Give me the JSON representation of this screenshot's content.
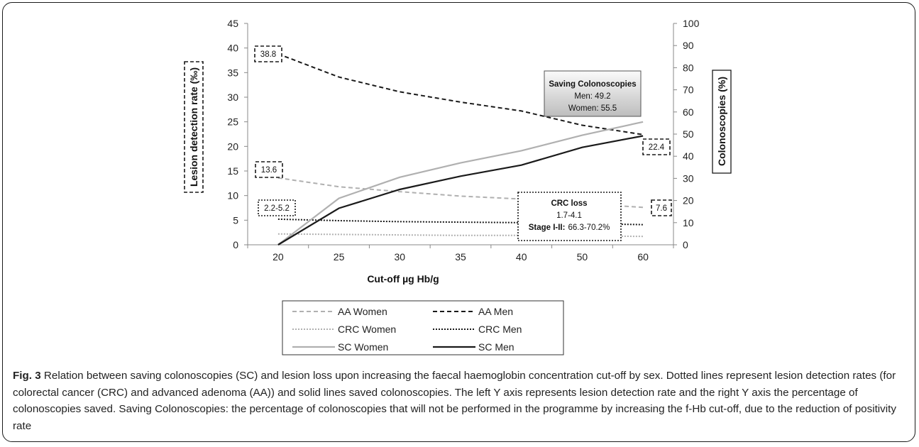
{
  "chart_data": {
    "type": "line",
    "x": [
      "20",
      "25",
      "30",
      "35",
      "40",
      "50",
      "60"
    ],
    "xlabel": "Cut-off µg Hb/g",
    "ylabel_left": "Lesion detection rate (‰)",
    "ylabel_right": "Colonoscopies (%)",
    "ylim_left": [
      0,
      45
    ],
    "ylim_right": [
      0,
      100
    ],
    "yticks_left": [
      "0",
      "5",
      "10",
      "15",
      "20",
      "25",
      "30",
      "35",
      "40",
      "45"
    ],
    "yticks_right": [
      "0",
      "10",
      "20",
      "30",
      "40",
      "50",
      "60",
      "70",
      "80",
      "90",
      "100"
    ],
    "series": [
      {
        "name": "AA Women",
        "axis": "left",
        "color": "#b0b0b0",
        "dash": "dashed",
        "values": [
          13.6,
          11.8,
          10.8,
          9.9,
          9.3,
          8.4,
          7.6
        ]
      },
      {
        "name": "AA Men",
        "axis": "left",
        "color": "#1a1a1a",
        "dash": "dashed",
        "values": [
          38.8,
          34.1,
          31.1,
          29.0,
          27.2,
          24.3,
          22.4
        ]
      },
      {
        "name": "CRC Women",
        "axis": "left",
        "color": "#b0b0b0",
        "dash": "dotted",
        "values": [
          2.2,
          2.1,
          2.0,
          1.9,
          1.9,
          1.8,
          1.7
        ]
      },
      {
        "name": "CRC Men",
        "axis": "left",
        "color": "#1a1a1a",
        "dash": "dotted",
        "values": [
          5.2,
          4.9,
          4.7,
          4.6,
          4.5,
          4.3,
          4.1
        ]
      },
      {
        "name": "SC Women",
        "axis": "right",
        "color": "#b0b0b0",
        "dash": "solid",
        "values": [
          0,
          21,
          30.5,
          37,
          42.5,
          49.5,
          55.5
        ]
      },
      {
        "name": "SC Men",
        "axis": "right",
        "color": "#1a1a1a",
        "dash": "solid",
        "values": [
          0,
          16.5,
          25,
          31,
          36,
          44,
          49.2
        ]
      }
    ],
    "annotations": {
      "aa_men_start": "38.8",
      "aa_men_end": "22.4",
      "aa_women_start": "13.6",
      "aa_women_end": "7.6",
      "crc_start": "2.2-5.2",
      "saving_title": "Saving Colonoscopies",
      "saving_men": "Men: 49.2",
      "saving_women": "Women: 55.5",
      "crc_loss_title": "CRC loss",
      "crc_loss_range": "1.7-4.1",
      "crc_loss_stage_label": "Stage I-II:",
      "crc_loss_stage_value": "66.3-70.2%"
    },
    "legend": {
      "placement": "bottom"
    },
    "grid": false
  },
  "caption": {
    "label": "Fig. 3",
    "text": "Relation between saving colonoscopies (SC) and lesion loss upon increasing the faecal haemoglobin concentration cut-off by sex. Dotted lines represent lesion detection rates (for colorectal cancer (CRC) and advanced adenoma (AA)) and solid lines saved colonoscopies. The left Y axis represents lesion detection rate and the right Y axis the percentage of colonoscopies saved. Saving Colonoscopies: the percentage of colonoscopies that will not be performed in the programme by increasing the f-Hb cut-off, due to the reduction of positivity rate"
  }
}
